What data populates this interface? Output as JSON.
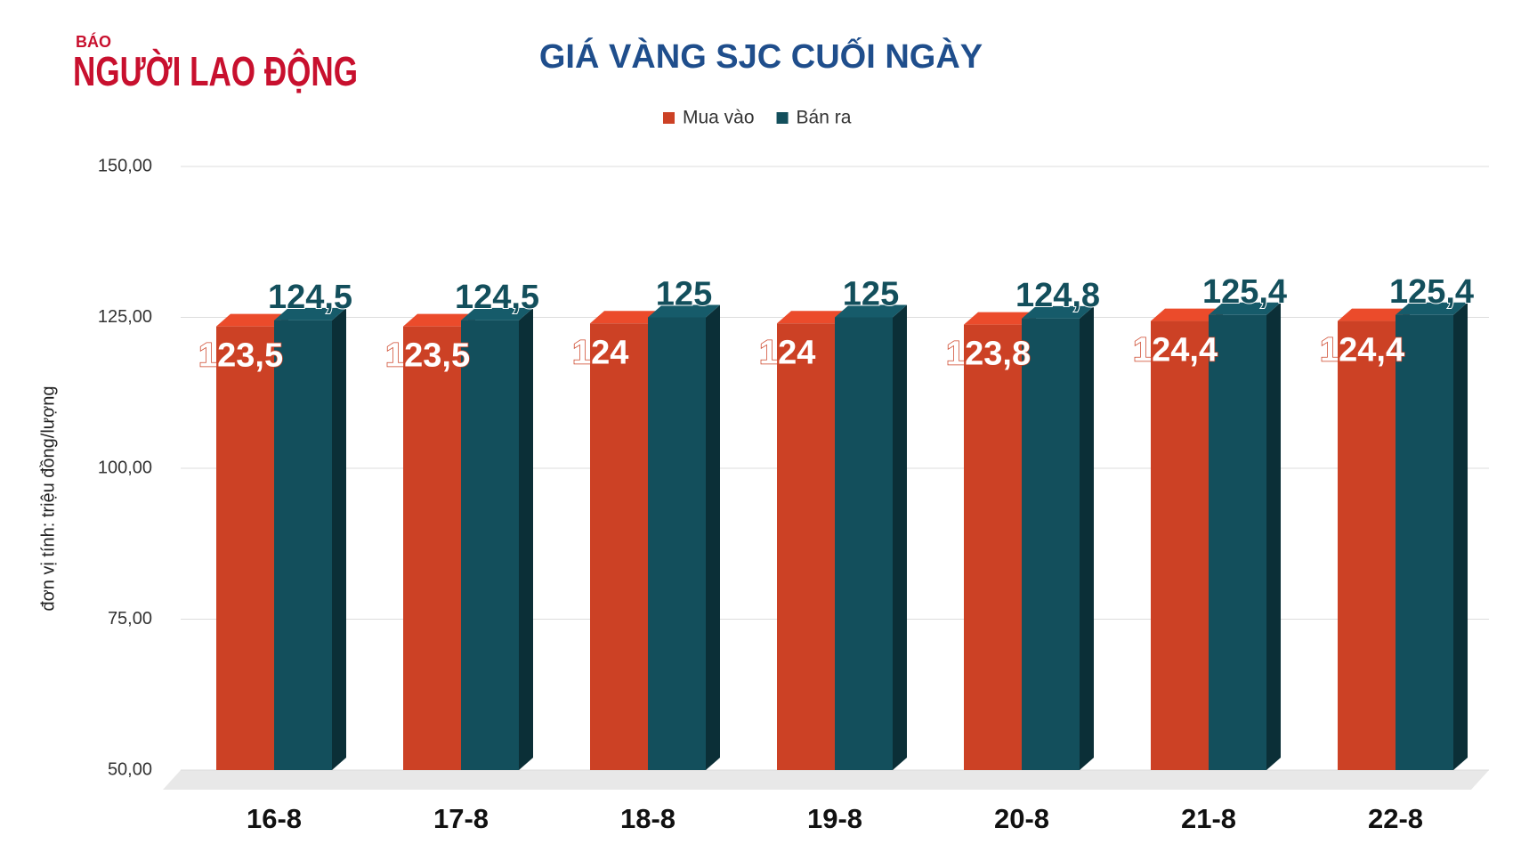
{
  "logo": {
    "small": "BÁO",
    "name": "NGƯỜI LAO ĐỘNG"
  },
  "chart_data": {
    "type": "bar3d",
    "title": "GIÁ VÀNG SJC CUỐI NGÀY",
    "y_label": "đơn vị tính: triệu đồng/lượng",
    "categories": [
      "16-8",
      "17-8",
      "18-8",
      "19-8",
      "20-8",
      "21-8",
      "22-8"
    ],
    "series": [
      {
        "name": "Mua vào",
        "color": "#cc4125",
        "values": [
          123.5,
          123.5,
          124,
          124,
          123.8,
          124.4,
          124.4
        ],
        "value_labels": [
          "123,5",
          "123,5",
          "124",
          "124",
          "123,8",
          "124,4",
          "124,4"
        ]
      },
      {
        "name": "Bán ra",
        "color": "#134f5c",
        "values": [
          124.5,
          124.5,
          125,
          125,
          124.8,
          125.4,
          125.4
        ],
        "value_labels": [
          "124,5",
          "124,5",
          "125",
          "125",
          "124,8",
          "125,4",
          "125,4"
        ]
      }
    ],
    "ylim": [
      50,
      150
    ],
    "yticks": [
      {
        "value": 50,
        "label": "50,00"
      },
      {
        "value": 75,
        "label": "75,00"
      },
      {
        "value": 100,
        "label": "100,00"
      },
      {
        "value": 125,
        "label": "125,00"
      },
      {
        "value": 150,
        "label": "150,00"
      }
    ],
    "grid": true,
    "legend": "top"
  }
}
